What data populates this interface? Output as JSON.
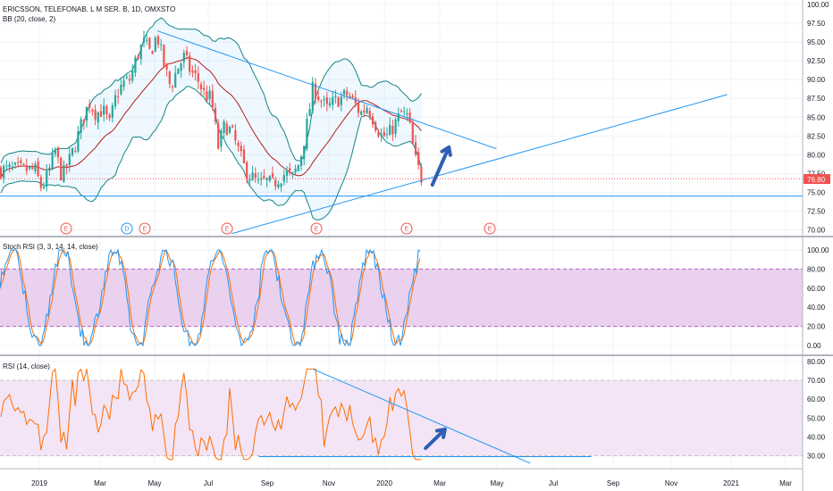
{
  "header": {
    "title": "ERICSSON, TELEFONAB. L M SER. B, 1D, OMXSTO",
    "bb_label": "BB (20, close, 2)"
  },
  "price_pane": {
    "ticks": [
      "100.00",
      "97.50",
      "95.00",
      "92.50",
      "90.00",
      "87.50",
      "85.00",
      "82.50",
      "80.00",
      "77.50",
      "75.00",
      "72.50",
      "70.00"
    ],
    "last_price": "76.80",
    "events": [
      "E",
      "D",
      "E",
      "E",
      "E",
      "E",
      "E"
    ]
  },
  "stoch_pane": {
    "label": "Stoch RSI (3, 3, 14, 14, close)",
    "ticks": [
      "100.00",
      "80.00",
      "60.00",
      "40.00",
      "20.00",
      "0.00"
    ]
  },
  "rsi_pane": {
    "label": "RSI (14, close)",
    "ticks": [
      "80.00",
      "70.00",
      "60.00",
      "50.00",
      "40.00",
      "30.00"
    ]
  },
  "time_axis": [
    "2019",
    "Mar",
    "May",
    "Jul",
    "Sep",
    "Nov",
    "2020",
    "Mar",
    "May",
    "Jul",
    "Sep",
    "Nov",
    "2021",
    "Mar"
  ],
  "colors": {
    "up": "#26a69a",
    "down": "#ef5350",
    "bb_band": "#138484",
    "bb_basis": "#b71c1c",
    "trend": "#2196f3",
    "arrow": "#2f5eb4",
    "stoch_k": "#2196f3",
    "stoch_d": "#ff6d00",
    "stoch_fill": "#e1bee7",
    "rsi_line": "#ff6d00",
    "rsi_fill": "#f3e5f5"
  },
  "chart_data": {
    "type": "candlestick",
    "symbol": "ERICSSON, TELEFONAB. L M SER. B",
    "interval": "1D",
    "exchange": "OMXSTO",
    "last_price": 76.8,
    "price_range": [
      69.0,
      101.0
    ],
    "close_path": [
      [
        "2018-12-31",
        78.0
      ],
      [
        "2019-01-07",
        75.5
      ],
      [
        "2019-01-14",
        77.5
      ],
      [
        "2019-01-21",
        80.5
      ],
      [
        "2019-01-28",
        77.0
      ],
      [
        "2019-02-04",
        79.0
      ],
      [
        "2019-02-11",
        81.5
      ],
      [
        "2019-02-18",
        84.5
      ],
      [
        "2019-02-25",
        87.0
      ],
      [
        "2019-03-04",
        85.5
      ],
      [
        "2019-03-11",
        86.0
      ],
      [
        "2019-03-18",
        84.0
      ],
      [
        "2019-03-25",
        88.0
      ],
      [
        "2019-04-01",
        89.5
      ],
      [
        "2019-04-08",
        90.0
      ],
      [
        "2019-04-15",
        93.0
      ],
      [
        "2019-04-22",
        95.0
      ],
      [
        "2019-04-29",
        93.5
      ],
      [
        "2019-05-06",
        96.0
      ],
      [
        "2019-05-13",
        92.0
      ],
      [
        "2019-05-20",
        89.0
      ],
      [
        "2019-05-27",
        91.5
      ],
      [
        "2019-06-03",
        93.0
      ],
      [
        "2019-06-10",
        91.0
      ],
      [
        "2019-06-17",
        90.0
      ],
      [
        "2019-06-24",
        88.0
      ],
      [
        "2019-07-01",
        87.5
      ],
      [
        "2019-07-08",
        81.0
      ],
      [
        "2019-07-15",
        84.0
      ],
      [
        "2019-07-22",
        83.0
      ],
      [
        "2019-07-29",
        80.5
      ],
      [
        "2019-08-05",
        78.0
      ],
      [
        "2019-08-12",
        77.0
      ],
      [
        "2019-08-19",
        76.0
      ],
      [
        "2019-08-26",
        76.5
      ],
      [
        "2019-09-02",
        76.0
      ],
      [
        "2019-09-09",
        77.0
      ],
      [
        "2019-09-16",
        77.5
      ],
      [
        "2019-09-23",
        77.0
      ],
      [
        "2019-09-30",
        79.0
      ],
      [
        "2019-10-07",
        83.5
      ],
      [
        "2019-10-14",
        89.0
      ],
      [
        "2019-10-21",
        87.5
      ],
      [
        "2019-10-28",
        86.0
      ],
      [
        "2019-11-04",
        87.0
      ],
      [
        "2019-11-11",
        87.5
      ],
      [
        "2019-11-18",
        88.0
      ],
      [
        "2019-11-25",
        87.0
      ],
      [
        "2019-12-02",
        85.5
      ],
      [
        "2019-12-09",
        86.5
      ],
      [
        "2019-12-16",
        84.5
      ],
      [
        "2019-12-23",
        82.5
      ],
      [
        "2019-12-30",
        82.5
      ],
      [
        "2020-01-06",
        84.0
      ],
      [
        "2020-01-13",
        85.5
      ],
      [
        "2020-01-20",
        85.0
      ],
      [
        "2020-01-27",
        79.5
      ],
      [
        "2020-02-03",
        76.8
      ]
    ],
    "indicators": [
      {
        "name": "BB (20, close, 2)"
      },
      {
        "name": "Stoch RSI (3, 3, 14, 14, close)",
        "range": [
          0,
          100
        ],
        "band": [
          20,
          80
        ]
      },
      {
        "name": "RSI (14, close)",
        "range": [
          25,
          80
        ],
        "band": [
          30,
          70
        ]
      }
    ]
  }
}
